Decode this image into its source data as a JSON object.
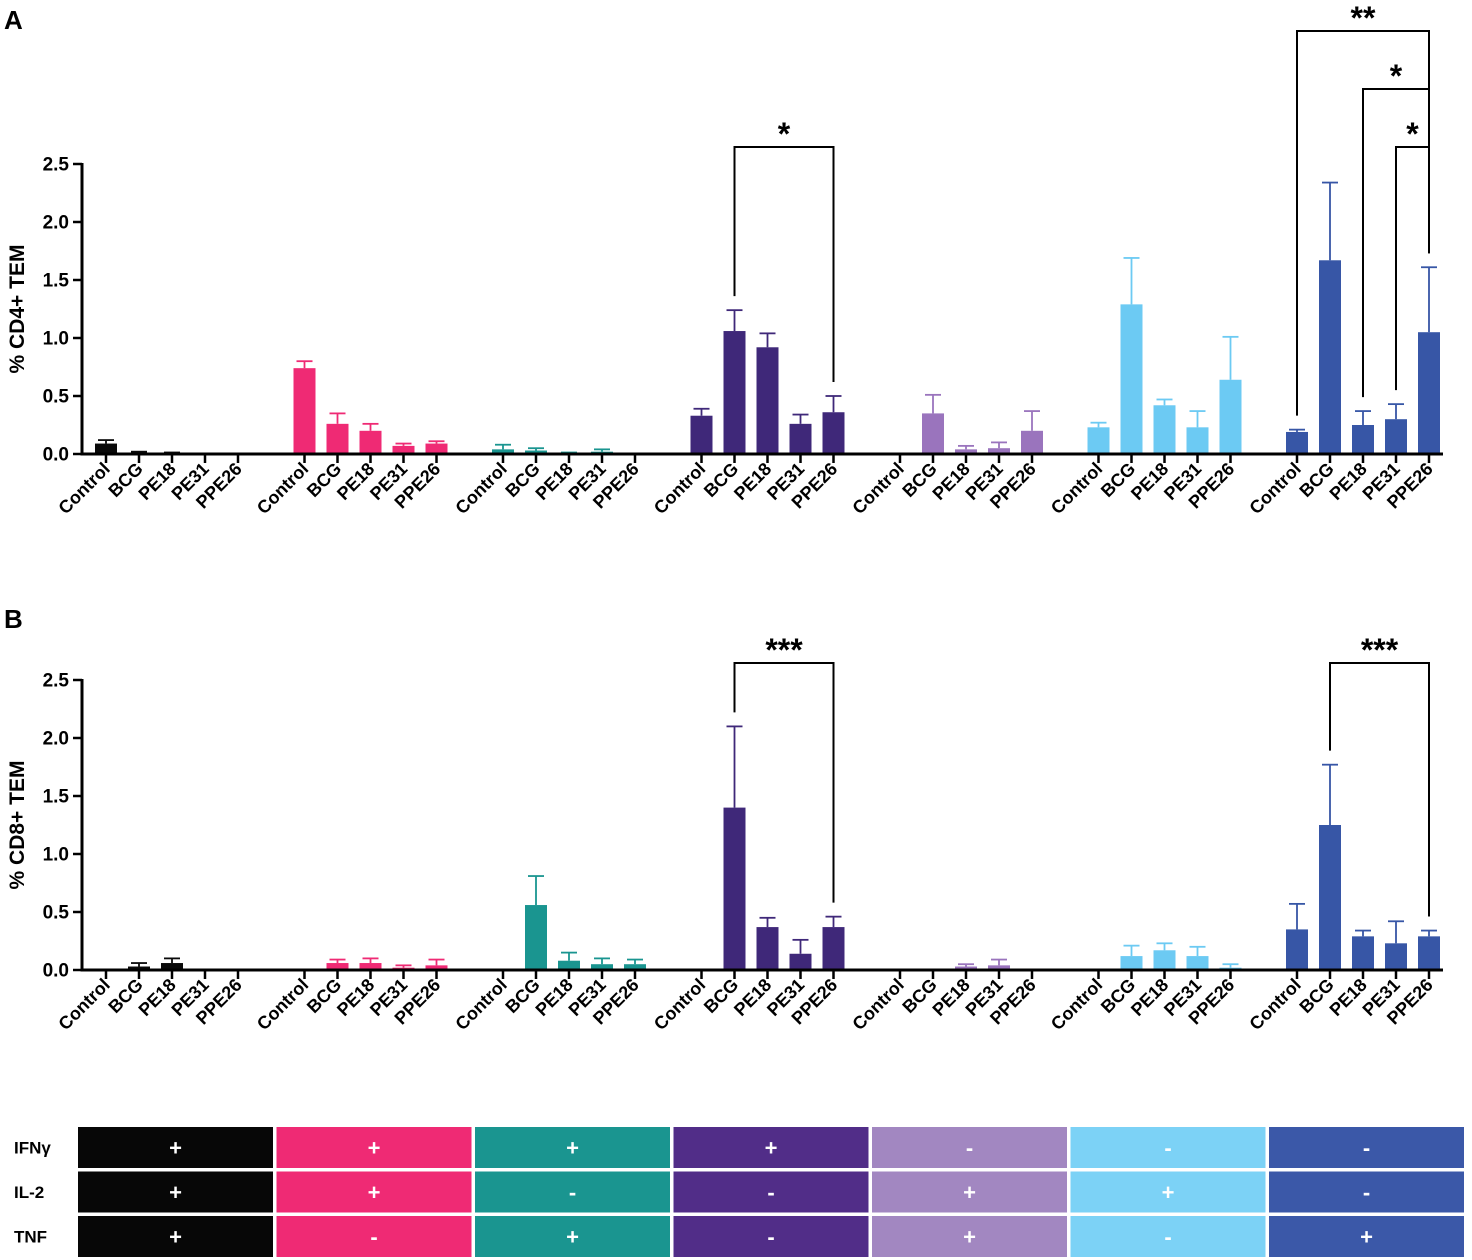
{
  "panel_labels": {
    "A": "A",
    "B": "B"
  },
  "chart_data": [
    {
      "type": "bar",
      "panel": "A",
      "ylabel": "% CD4+ TEM",
      "ylim": [
        0,
        2.5
      ],
      "yticks": [
        "0.0",
        "0.5",
        "1.0",
        "1.5",
        "2.0",
        "2.5"
      ],
      "categories": [
        "Control",
        "BCG",
        "PE18",
        "PE31",
        "PPE26"
      ],
      "series": [
        {
          "name": "IFNγ+ IL-2+ TNF+",
          "color": "#0a0a0a",
          "values": [
            0.09,
            0.01,
            0.005,
            0.0,
            0.0
          ],
          "errors": [
            0.03,
            0.01,
            0.008,
            0.0,
            0.0
          ]
        },
        {
          "name": "IFNγ+ IL-2+ TNF-",
          "color": "#ef2a74",
          "values": [
            0.74,
            0.26,
            0.2,
            0.07,
            0.09
          ],
          "errors": [
            0.06,
            0.09,
            0.06,
            0.02,
            0.02
          ]
        },
        {
          "name": "IFNγ+ IL-2- TNF+",
          "color": "#1a9590",
          "values": [
            0.04,
            0.03,
            0.005,
            0.02,
            0.0
          ],
          "errors": [
            0.04,
            0.02,
            0.008,
            0.02,
            0.0
          ]
        },
        {
          "name": "IFNγ+ IL-2- TNF-",
          "color": "#3f2879",
          "values": [
            0.33,
            1.06,
            0.92,
            0.26,
            0.36
          ],
          "errors": [
            0.06,
            0.18,
            0.12,
            0.08,
            0.14
          ]
        },
        {
          "name": "IFNγ- IL-2+ TNF+",
          "color": "#9a74bd",
          "values": [
            0.0,
            0.35,
            0.04,
            0.05,
            0.2
          ],
          "errors": [
            0.0,
            0.16,
            0.03,
            0.05,
            0.17
          ]
        },
        {
          "name": "IFNγ- IL-2+ TNF-",
          "color": "#6ccaf3",
          "values": [
            0.23,
            1.29,
            0.42,
            0.23,
            0.64
          ],
          "errors": [
            0.04,
            0.4,
            0.05,
            0.14,
            0.37
          ]
        },
        {
          "name": "IFNγ- IL-2- TNF+",
          "color": "#3756a6",
          "values": [
            0.19,
            1.67,
            0.25,
            0.3,
            1.05
          ],
          "errors": [
            0.02,
            0.67,
            0.12,
            0.13,
            0.56
          ]
        }
      ],
      "significance": [
        {
          "group": 3,
          "from": 1,
          "to": 4,
          "label": "*"
        },
        {
          "group": 6,
          "from": 0,
          "to": 4,
          "label": "**"
        },
        {
          "group": 6,
          "from": 2,
          "to": 4,
          "label": "*"
        },
        {
          "group": 6,
          "from": 3,
          "to": 4,
          "label": "*"
        }
      ]
    },
    {
      "type": "bar",
      "panel": "B",
      "ylabel": "% CD8+ TEM",
      "ylim": [
        0,
        2.5
      ],
      "yticks": [
        "0.0",
        "0.5",
        "1.0",
        "1.5",
        "2.0",
        "2.5"
      ],
      "categories": [
        "Control",
        "BCG",
        "PE18",
        "PE31",
        "PPE26"
      ],
      "series": [
        {
          "name": "IFNγ+ IL-2+ TNF+",
          "color": "#0a0a0a",
          "values": [
            0.0,
            0.03,
            0.06,
            0.0,
            0.0
          ],
          "errors": [
            0.0,
            0.03,
            0.04,
            0.0,
            0.0
          ]
        },
        {
          "name": "IFNγ+ IL-2+ TNF-",
          "color": "#ef2a74",
          "values": [
            0.0,
            0.06,
            0.06,
            0.02,
            0.04
          ],
          "errors": [
            0.0,
            0.03,
            0.04,
            0.02,
            0.05
          ]
        },
        {
          "name": "IFNγ+ IL-2- TNF+",
          "color": "#1a9590",
          "values": [
            0.0,
            0.56,
            0.08,
            0.05,
            0.05
          ],
          "errors": [
            0.0,
            0.25,
            0.07,
            0.05,
            0.04
          ]
        },
        {
          "name": "IFNγ+ IL-2- TNF-",
          "color": "#3f2879",
          "values": [
            0.0,
            1.4,
            0.37,
            0.14,
            0.37
          ],
          "errors": [
            0.0,
            0.7,
            0.08,
            0.12,
            0.09
          ]
        },
        {
          "name": "IFNγ- IL-2+ TNF+",
          "color": "#9a74bd",
          "values": [
            0.0,
            0.0,
            0.03,
            0.04,
            0.0
          ],
          "errors": [
            0.0,
            0.0,
            0.02,
            0.05,
            0.0
          ]
        },
        {
          "name": "IFNγ- IL-2+ TNF-",
          "color": "#6ccaf3",
          "values": [
            0.0,
            0.12,
            0.17,
            0.12,
            0.02
          ],
          "errors": [
            0.0,
            0.09,
            0.06,
            0.08,
            0.03
          ]
        },
        {
          "name": "IFNγ- IL-2- TNF+",
          "color": "#3756a6",
          "values": [
            0.35,
            1.25,
            0.29,
            0.23,
            0.29
          ],
          "errors": [
            0.22,
            0.52,
            0.05,
            0.19,
            0.05
          ]
        }
      ],
      "significance": [
        {
          "group": 3,
          "from": 1,
          "to": 4,
          "label": "***"
        },
        {
          "group": 6,
          "from": 1,
          "to": 4,
          "label": "***"
        }
      ]
    }
  ],
  "legend_table": {
    "rows": [
      {
        "label": "IFNγ",
        "cells": [
          "+",
          "+",
          "+",
          "+",
          "-",
          "-",
          "-"
        ]
      },
      {
        "label": "IL-2",
        "cells": [
          "+",
          "+",
          "-",
          "-",
          "+",
          "+",
          "-"
        ]
      },
      {
        "label": "TNF",
        "cells": [
          "+",
          "-",
          "+",
          "-",
          "+",
          "-",
          "+"
        ]
      }
    ],
    "colors": [
      "#070707",
      "#ef2a74",
      "#1a9590",
      "#512d88",
      "#a287c1",
      "#7cd2f6",
      "#3b58a8"
    ]
  }
}
